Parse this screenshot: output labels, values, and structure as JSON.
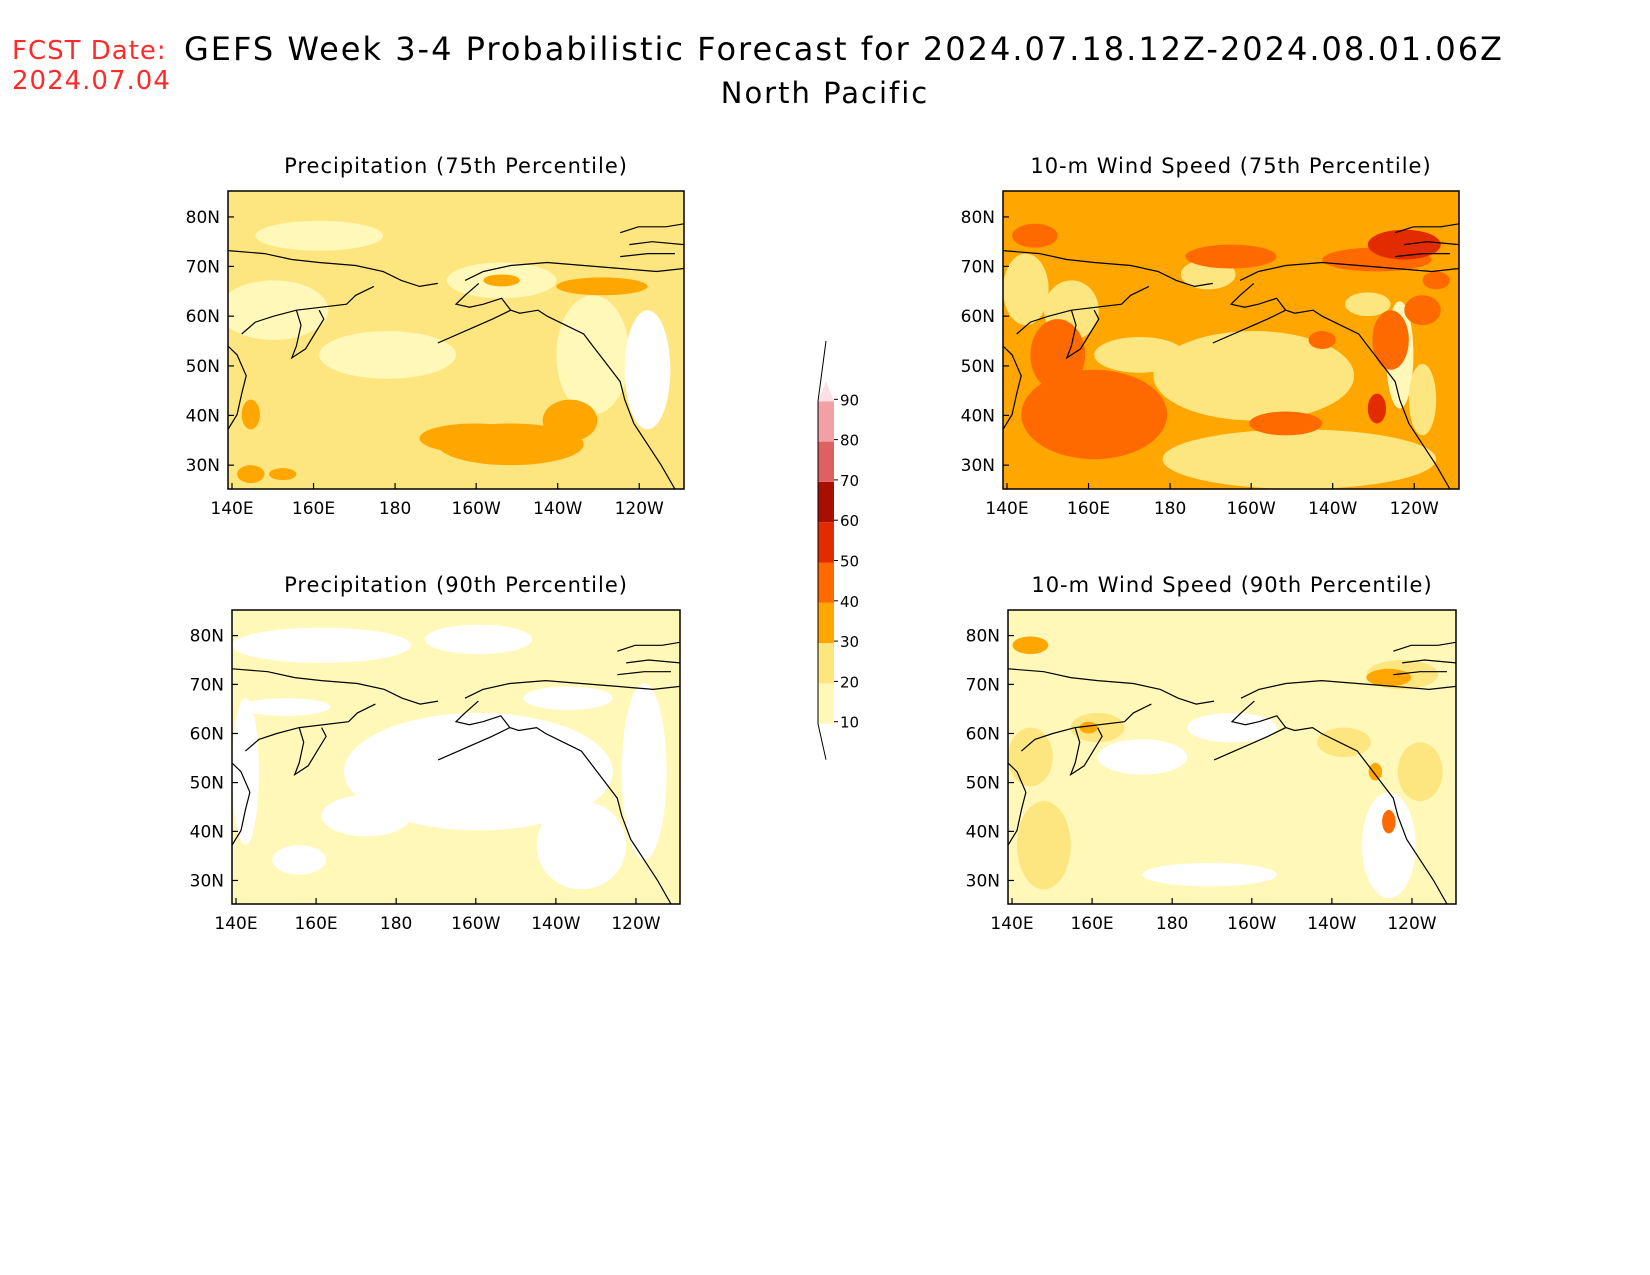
{
  "fcst": {
    "label": "FCST Date:",
    "date": "2024.07.04"
  },
  "header": {
    "title": "GEFS Week 3-4 Probabilistic Forecast for 2024.07.18.12Z-2024.08.01.06Z",
    "region": "North Pacific"
  },
  "axes": {
    "lon_labels": [
      "140E",
      "160E",
      "180",
      "160W",
      "140W",
      "120W"
    ],
    "lat_labels": [
      "80N",
      "70N",
      "60N",
      "50N",
      "40N",
      "30N"
    ]
  },
  "panels": [
    {
      "title": "Precipitation (75th Percentile)"
    },
    {
      "title": "10-m Wind Speed (75th Percentile)"
    },
    {
      "title": "Precipitation (90th Percentile)"
    },
    {
      "title": "10-m Wind Speed (90th Percentile)"
    }
  ],
  "colorbar": {
    "labels": [
      "10",
      "20",
      "30",
      "40",
      "50",
      "60",
      "70",
      "80",
      "90"
    ],
    "colors": [
      "#fff8b8",
      "#fde680",
      "#ffa600",
      "#ff6a00",
      "#e32b00",
      "#a70f00",
      "#de6060",
      "#f2a0a4",
      "#fce0e6"
    ]
  }
}
